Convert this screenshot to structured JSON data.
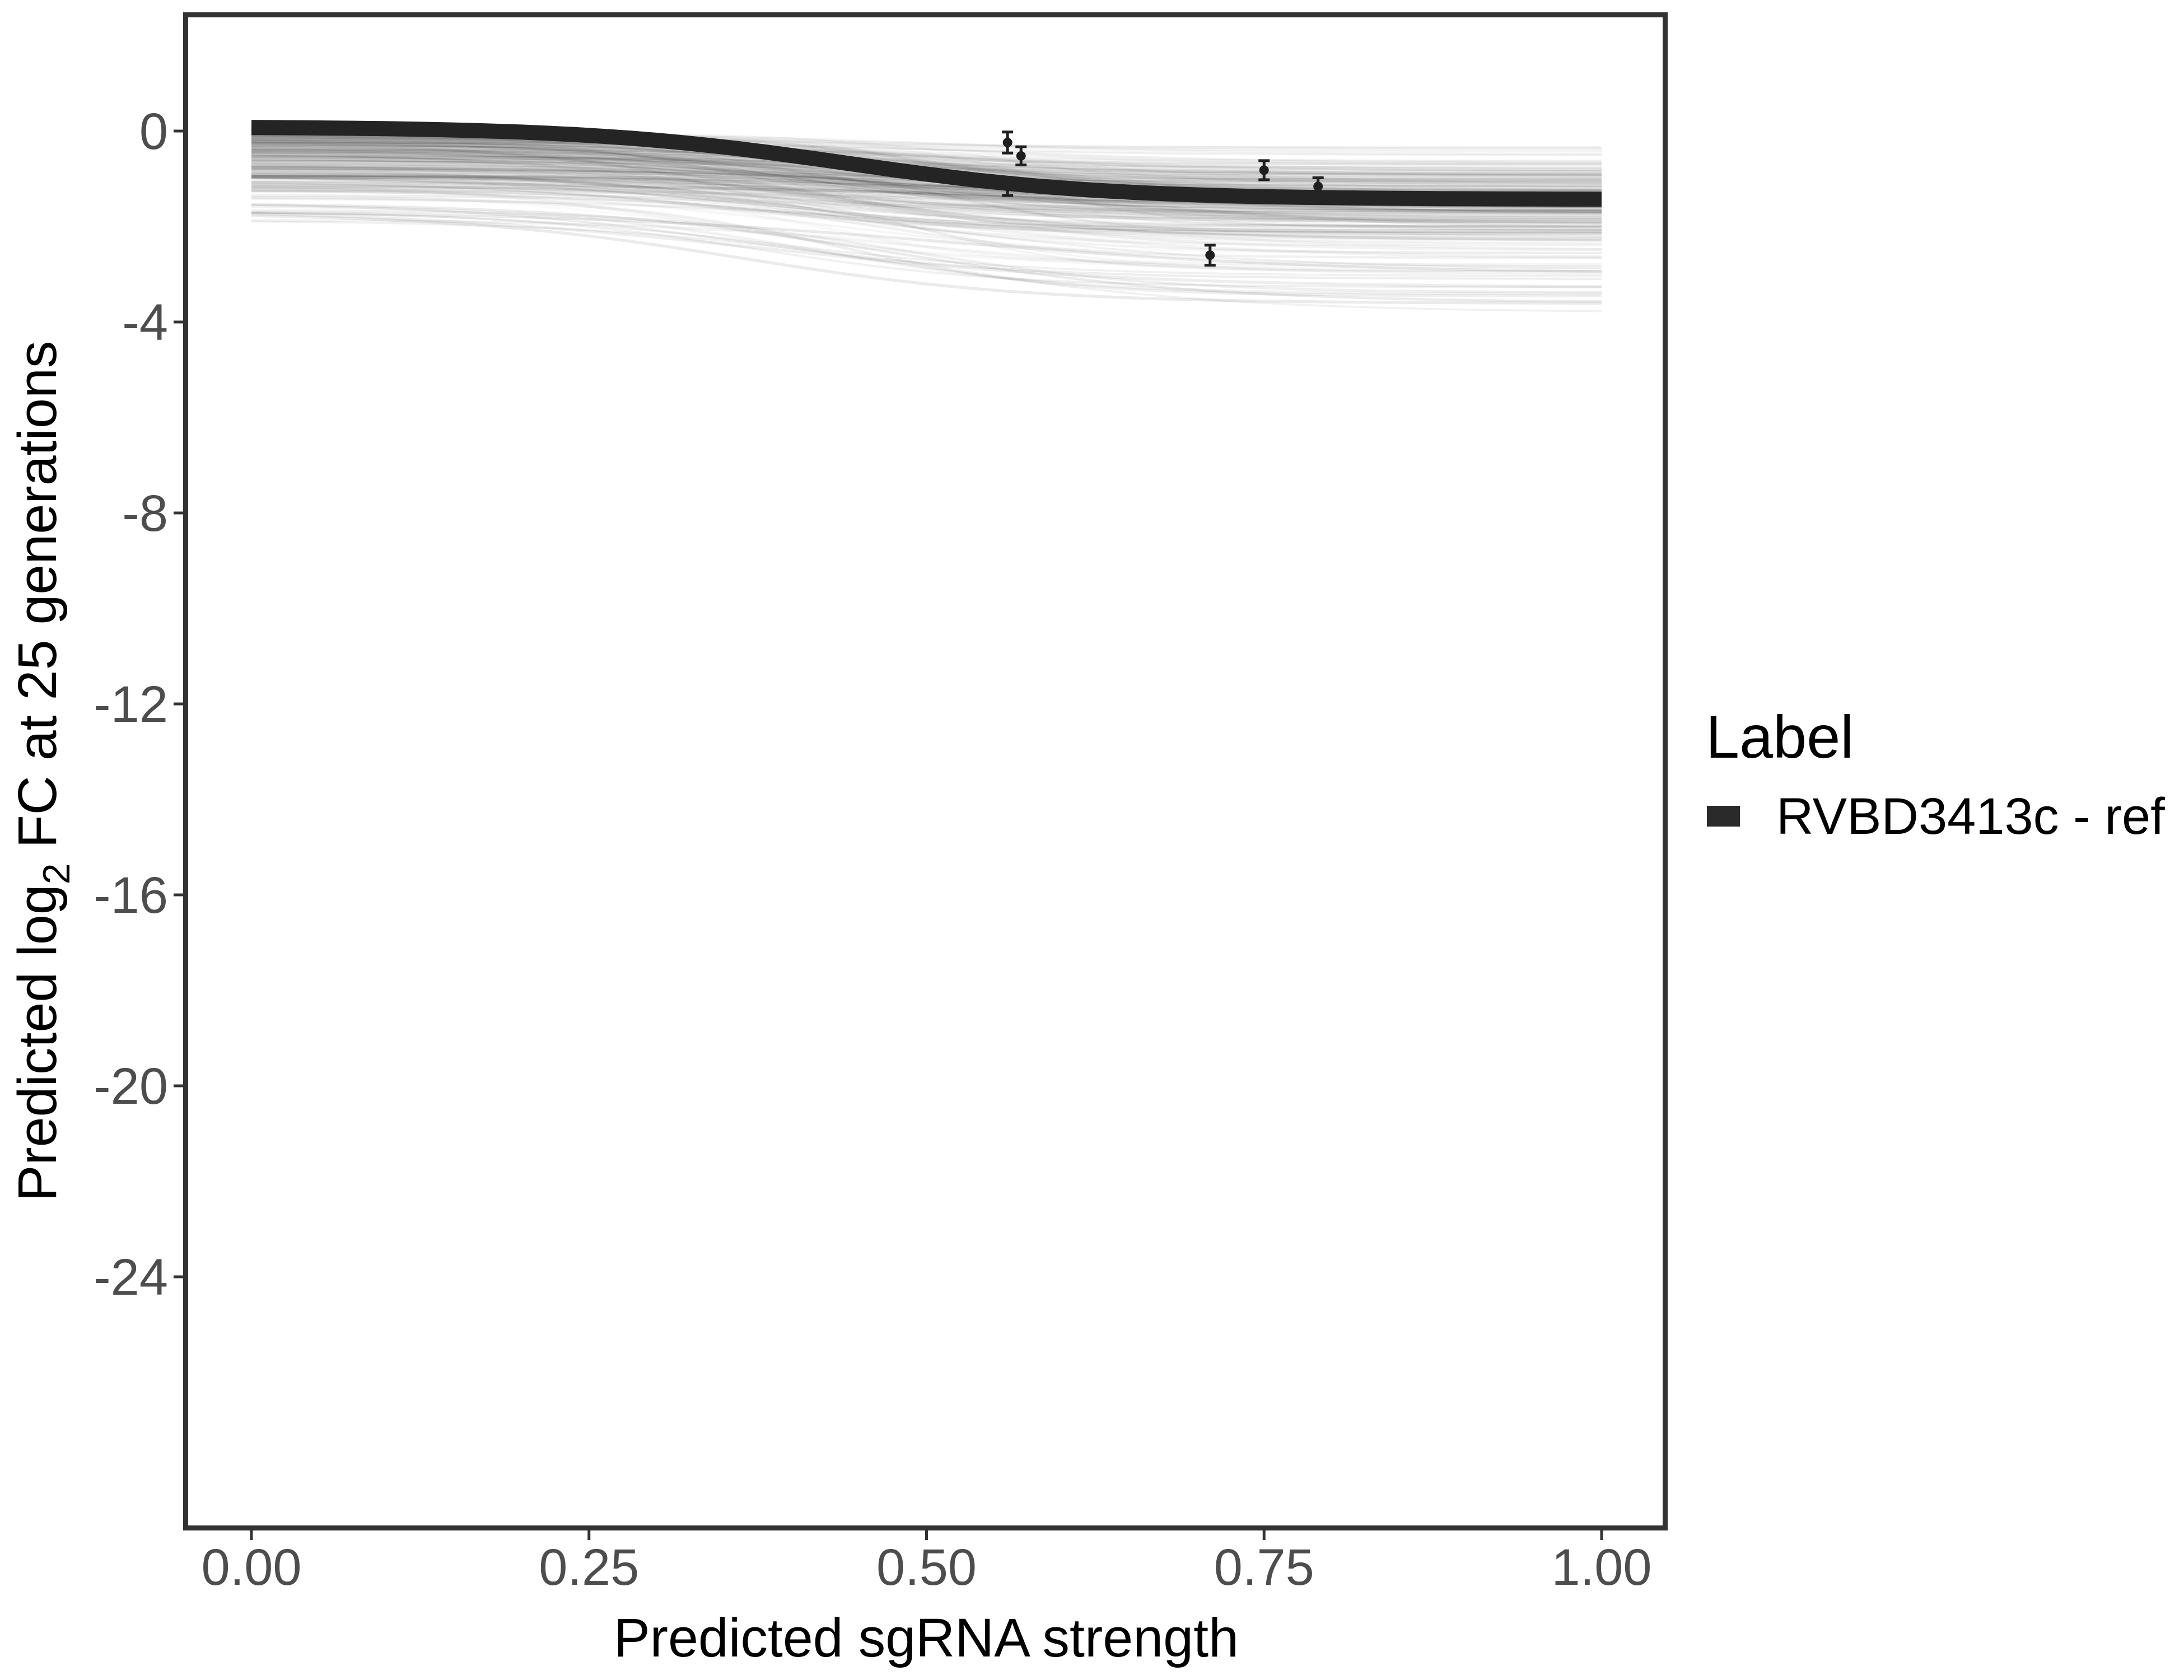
{
  "figure": {
    "background": "#ffffff",
    "panel_border_color": "#333333",
    "tick_mark_color": "#333333",
    "tick_label_color": "#4d4d4d",
    "axis_title_color": "#000000"
  },
  "chart_data": {
    "type": "line",
    "title": "",
    "xlabel": "Predicted sgRNA strength",
    "ylabel": "Predicted log2 FC at 25 generations",
    "ylabel_parts": {
      "pre": "Predicted  log",
      "sub": "2",
      "post": " FC at 25 generations"
    },
    "x_tick_labels": [
      "0.00",
      "0.25",
      "0.50",
      "0.75",
      "1.00"
    ],
    "x_tick_values": [
      0,
      0.25,
      0.5,
      0.75,
      1.0
    ],
    "y_tick_labels": [
      "0",
      "-4",
      "-8",
      "-12",
      "-16",
      "-20",
      "-24"
    ],
    "y_tick_values": [
      0,
      -4,
      -8,
      -12,
      -16,
      -20,
      -24
    ],
    "x_axis_range": [
      0,
      1
    ],
    "y_axis_range_shown": [
      2.5,
      -29.3
    ],
    "grid": "off",
    "legend_position": "right",
    "series": [
      {
        "name": "RVBD3413c - ref",
        "role": "reference-curve",
        "curve": "sigmoid",
        "color": "#242424",
        "stroke_width": 27,
        "params": {
          "top": 0.09,
          "drop": 1.52,
          "center": 0.44,
          "scale": 0.095
        },
        "x_domain": [
          0,
          1
        ]
      },
      {
        "name": "posterior-sample-curves",
        "role": "background-curves",
        "curve": "sigmoid-ensemble",
        "color": "#000000",
        "count_main": 230,
        "count_texture": 12,
        "count_outlier": 14,
        "seed": 20240613,
        "start_band": [
          -0.03,
          -1.3
        ],
        "end_band": [
          -0.4,
          -3.8
        ]
      }
    ],
    "error_points": [
      {
        "x": 0.56,
        "y": -0.24,
        "err": 0.22
      },
      {
        "x": 0.57,
        "y": -0.52,
        "err": 0.19
      },
      {
        "x": 0.56,
        "y": -1.16,
        "err": 0.19
      },
      {
        "x": 0.75,
        "y": -0.82,
        "err": 0.2
      },
      {
        "x": 0.79,
        "y": -1.16,
        "err": 0.18
      },
      {
        "x": 0.71,
        "y": -2.6,
        "err": 0.21
      }
    ],
    "point_color": "#1f1f1f"
  },
  "legend": {
    "title": "Label",
    "entries": [
      {
        "label": "RVBD3413c - ref",
        "marker": "thick-line-key",
        "marker_color": "#2a2a2a"
      }
    ]
  }
}
